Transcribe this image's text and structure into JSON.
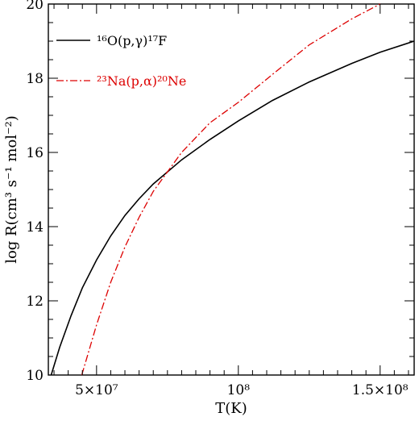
{
  "chart_data": {
    "type": "line",
    "xlabel": "T(K)",
    "ylabel": "log R(cm³ s⁻¹ mol⁻²)",
    "xlim": [
      33000000,
      162000000
    ],
    "ylim": [
      10,
      20
    ],
    "grid": false,
    "legend_position": "top-left",
    "x_ticks": [
      {
        "value": 50000000,
        "label": "5×10⁷"
      },
      {
        "value": 100000000,
        "label": "10⁸"
      },
      {
        "value": 150000000,
        "label": "1.5×10⁸"
      }
    ],
    "y_ticks": [
      10,
      12,
      14,
      16,
      18,
      20
    ],
    "series": [
      {
        "name": "¹⁶O(p,γ)¹⁷F",
        "color": "#000000",
        "style": "solid",
        "x": [
          34000000,
          37000000,
          41000000,
          45000000,
          50000000,
          55000000,
          60000000,
          65000000,
          70000000,
          80000000,
          90000000,
          100000000,
          112000000,
          125000000,
          140000000,
          150000000,
          162000000
        ],
        "y": [
          10.0,
          10.75,
          11.6,
          12.35,
          13.1,
          13.75,
          14.3,
          14.75,
          15.15,
          15.8,
          16.35,
          16.85,
          17.4,
          17.9,
          18.4,
          18.7,
          19.0
        ]
      },
      {
        "name": "²³Na(p,α)²⁰Ne",
        "color": "#dd0000",
        "style": "dashdot",
        "x": [
          44800000,
          50000000,
          55000000,
          60000000,
          65000000,
          70000000,
          80000000,
          90000000,
          100000000,
          112000000,
          125000000,
          140000000,
          150000000
        ],
        "y": [
          10.0,
          11.35,
          12.5,
          13.45,
          14.25,
          14.95,
          16.0,
          16.8,
          17.35,
          18.1,
          18.9,
          19.6,
          20.0
        ]
      }
    ]
  }
}
